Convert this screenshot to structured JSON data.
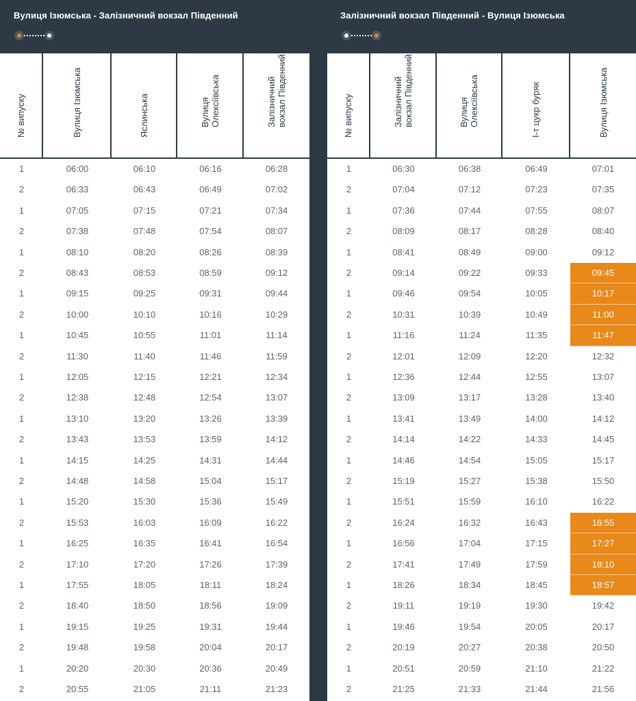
{
  "left": {
    "title": "Вулиця Ізюмська - Залізничний вокзал Південний",
    "headers": [
      "№ випуску",
      "Вулиця Ізюмська",
      "Яслинська",
      "Вулиця\nОлексіївська",
      "Залізничний\nвокзал Південний"
    ],
    "rows": [
      [
        "1",
        "06:00",
        "06:10",
        "06:16",
        "06:28"
      ],
      [
        "2",
        "06:33",
        "06:43",
        "06:49",
        "07:02"
      ],
      [
        "1",
        "07:05",
        "07:15",
        "07:21",
        "07:34"
      ],
      [
        "2",
        "07:38",
        "07:48",
        "07:54",
        "08:07"
      ],
      [
        "1",
        "08:10",
        "08:20",
        "08:26",
        "08:39"
      ],
      [
        "2",
        "08:43",
        "08:53",
        "08:59",
        "09:12"
      ],
      [
        "1",
        "09:15",
        "09:25",
        "09:31",
        "09:44"
      ],
      [
        "2",
        "10:00",
        "10:10",
        "10:16",
        "10:29"
      ],
      [
        "1",
        "10:45",
        "10:55",
        "11:01",
        "11:14"
      ],
      [
        "2",
        "11:30",
        "11:40",
        "11:46",
        "11:59"
      ],
      [
        "1",
        "12:05",
        "12:15",
        "12:21",
        "12:34"
      ],
      [
        "2",
        "12:38",
        "12:48",
        "12:54",
        "13:07"
      ],
      [
        "1",
        "13:10",
        "13:20",
        "13:26",
        "13:39"
      ],
      [
        "2",
        "13:43",
        "13:53",
        "13:59",
        "14:12"
      ],
      [
        "1",
        "14:15",
        "14:25",
        "14:31",
        "14:44"
      ],
      [
        "2",
        "14:48",
        "14:58",
        "15:04",
        "15:17"
      ],
      [
        "1",
        "15:20",
        "15:30",
        "15:36",
        "15:49"
      ],
      [
        "2",
        "15:53",
        "16:03",
        "16:09",
        "16:22"
      ],
      [
        "1",
        "16:25",
        "16:35",
        "16:41",
        "16:54"
      ],
      [
        "2",
        "17:10",
        "17:20",
        "17:26",
        "17:39"
      ],
      [
        "1",
        "17:55",
        "18:05",
        "18:11",
        "18:24"
      ],
      [
        "2",
        "18:40",
        "18:50",
        "18:56",
        "19:09"
      ],
      [
        "1",
        "19:15",
        "19:25",
        "19:31",
        "19:44"
      ],
      [
        "2",
        "19:48",
        "19:58",
        "20:04",
        "20:17"
      ],
      [
        "1",
        "20:20",
        "20:30",
        "20:36",
        "20:49"
      ],
      [
        "2",
        "20:55",
        "21:05",
        "21:11",
        "21:23"
      ]
    ],
    "highlighted_rows": []
  },
  "right": {
    "title": "Залізничний вокзал Південний - Вулиця Ізюмська",
    "headers": [
      "№ випуску",
      "Залізничний\nвокзал Південний",
      "Вулиця\nОлексіївська",
      "І-т цукр буряк",
      "Вулиця Ізюмська"
    ],
    "rows": [
      [
        "1",
        "06:30",
        "06:38",
        "06:49",
        "07:01"
      ],
      [
        "2",
        "07:04",
        "07:12",
        "07:23",
        "07:35"
      ],
      [
        "1",
        "07:36",
        "07:44",
        "07:55",
        "08:07"
      ],
      [
        "2",
        "08:09",
        "08:17",
        "08:28",
        "08:40"
      ],
      [
        "1",
        "08:41",
        "08:49",
        "09:00",
        "09:12"
      ],
      [
        "2",
        "09:14",
        "09:22",
        "09:33",
        "09:45"
      ],
      [
        "1",
        "09:46",
        "09:54",
        "10:05",
        "10:17"
      ],
      [
        "2",
        "10:31",
        "10:39",
        "10:49",
        "11:00"
      ],
      [
        "1",
        "11:16",
        "11:24",
        "11:35",
        "11:47"
      ],
      [
        "2",
        "12:01",
        "12:09",
        "12:20",
        "12:32"
      ],
      [
        "1",
        "12:36",
        "12:44",
        "12:55",
        "13:07"
      ],
      [
        "2",
        "13:09",
        "13:17",
        "13:28",
        "13:40"
      ],
      [
        "1",
        "13:41",
        "13:49",
        "14:00",
        "14:12"
      ],
      [
        "2",
        "14:14",
        "14:22",
        "14:33",
        "14:45"
      ],
      [
        "1",
        "14:46",
        "14:54",
        "15:05",
        "15:17"
      ],
      [
        "2",
        "15:19",
        "15:27",
        "15:38",
        "15:50"
      ],
      [
        "1",
        "15:51",
        "15:59",
        "16:10",
        "16:22"
      ],
      [
        "2",
        "16:24",
        "16:32",
        "16:43",
        "16:55"
      ],
      [
        "1",
        "16:56",
        "17:04",
        "17:15",
        "17:27"
      ],
      [
        "2",
        "17:41",
        "17:49",
        "17:59",
        "18:10"
      ],
      [
        "1",
        "18:26",
        "18:34",
        "18:45",
        "18:57"
      ],
      [
        "2",
        "19:11",
        "19:19",
        "19:30",
        "19:42"
      ],
      [
        "1",
        "19:46",
        "19:54",
        "20:05",
        "20:17"
      ],
      [
        "2",
        "20:19",
        "20:27",
        "20:38",
        "20:50"
      ],
      [
        "1",
        "20:51",
        "20:59",
        "21:10",
        "21:22"
      ],
      [
        "2",
        "21:25",
        "21:33",
        "21:44",
        "21:56"
      ]
    ],
    "highlighted_rows": [
      5,
      6,
      7,
      8,
      17,
      18,
      19,
      20
    ]
  },
  "colors": {
    "header_bg": "#2d3a45",
    "highlight": "#e8891a",
    "text": "#5a636b"
  }
}
